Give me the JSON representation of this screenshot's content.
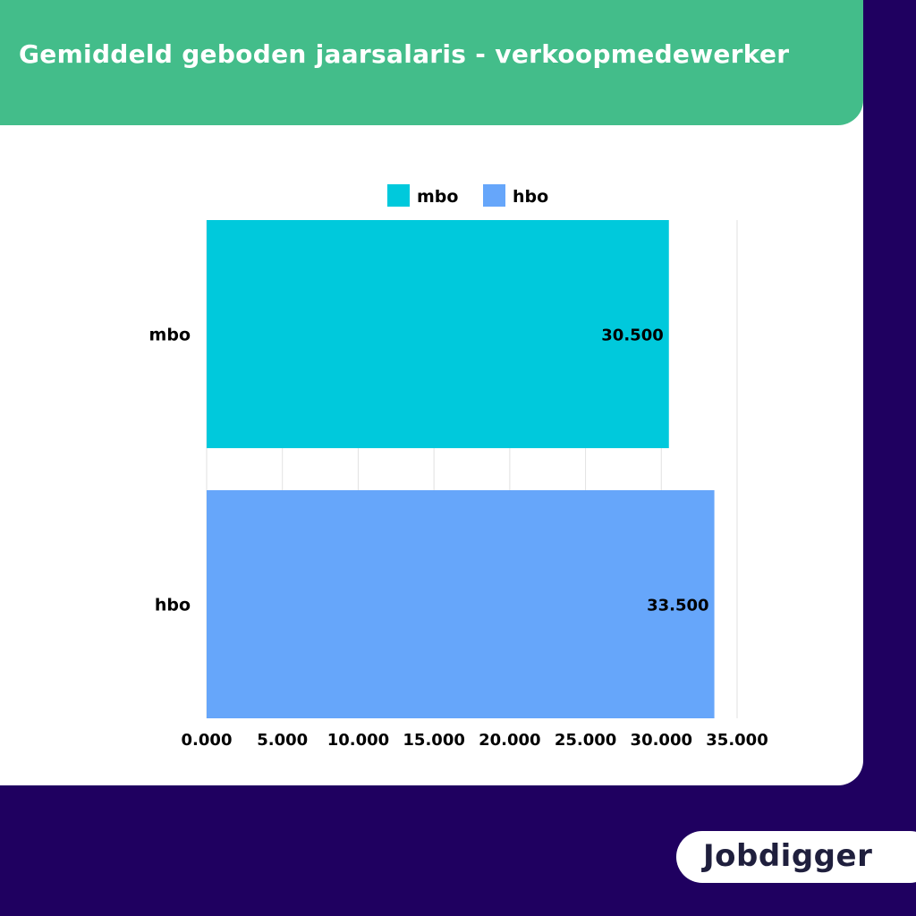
{
  "header": {
    "title": "Gemiddeld geboden jaarsalaris - verkoopmedewerker"
  },
  "colors": {
    "mbo": "#00c9dc",
    "hbo": "#66a6fa",
    "header_bg": "#43bd8a",
    "page_bg": "#1f0060",
    "grid": "#e2e2e2"
  },
  "chart_data": {
    "type": "bar",
    "orientation": "horizontal",
    "title": "Gemiddeld geboden jaarsalaris - verkoopmedewerker",
    "categories": [
      "mbo",
      "hbo"
    ],
    "values": [
      30500,
      33500
    ],
    "data_labels": [
      "30.500",
      "33.500"
    ],
    "legend": [
      {
        "name": "mbo",
        "color": "#00c9dc"
      },
      {
        "name": "hbo",
        "color": "#66a6fa"
      }
    ],
    "legend_position": "top",
    "xlim": [
      0,
      35000
    ],
    "x_ticks": [
      0,
      5000,
      10000,
      15000,
      20000,
      25000,
      30000,
      35000
    ],
    "x_tick_labels": [
      "0.000",
      "5.000",
      "10.000",
      "15.000",
      "20.000",
      "25.000",
      "30.000",
      "35.000"
    ],
    "grid": true
  },
  "logo": {
    "text": "Jobdigger"
  }
}
